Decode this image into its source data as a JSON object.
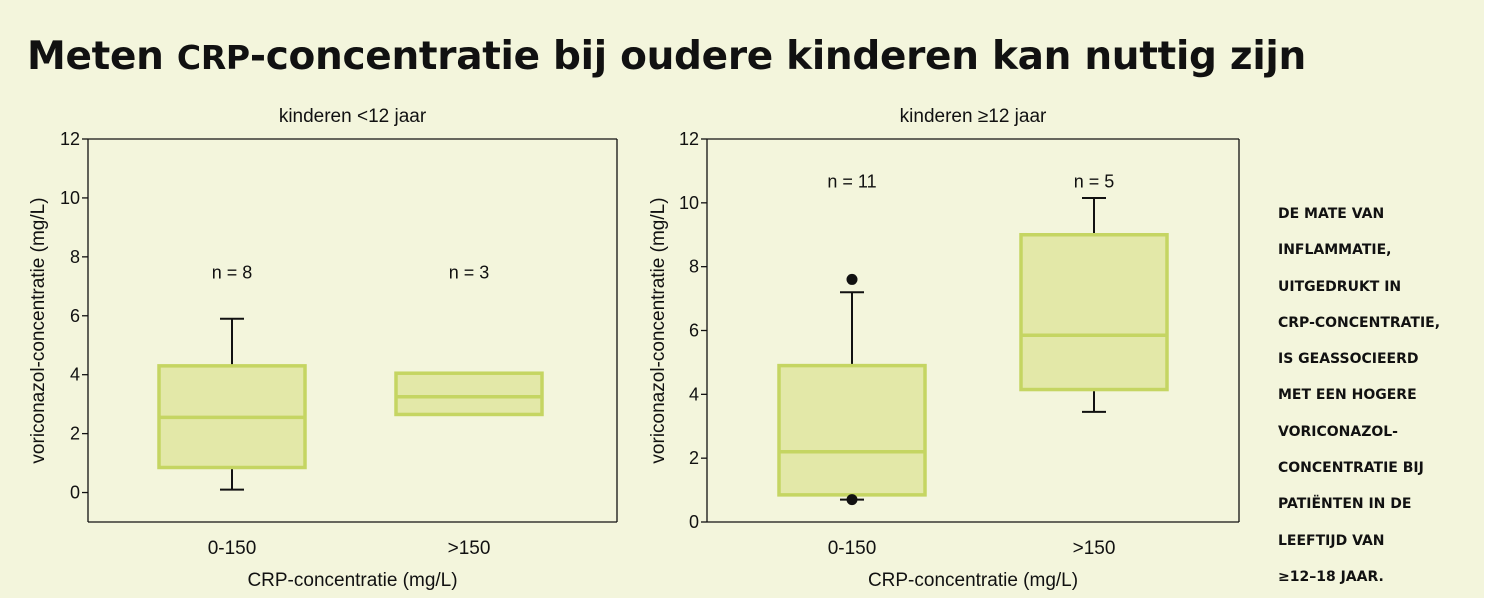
{
  "headline": {
    "pre": "Meten ",
    "abbr": "CRP",
    "post": "-concentratie bij oudere kinderen kan nuttig zijn"
  },
  "side_note": {
    "lines": [
      "De mate van",
      "inflammatie,",
      "uitgedrukt in",
      "CRP-concentratie,",
      "is geassocieerd",
      "met een hogere",
      "voriconazol-",
      "concentratie bij",
      "patiënten in de",
      "leeftijd van",
      "≥12–18 jaar."
    ]
  },
  "colors": {
    "background": "#f3f5dc",
    "box_fill": "#e3e8a8",
    "box_stroke": "#c5d562",
    "axis": "#111111"
  },
  "chart_data": [
    {
      "type": "box",
      "title": "kinderen <12 jaar",
      "xlabel": "CRP-concentratie (mg/L)",
      "ylabel": "voriconazol-concentratie (mg/L)",
      "ylim": [
        -1,
        12
      ],
      "yticks": [
        0,
        2,
        4,
        6,
        8,
        10,
        12
      ],
      "grid": false,
      "annotation_y": 7.5,
      "categories": [
        "0-150",
        ">150"
      ],
      "boxes": [
        {
          "label": "0-150",
          "n_label": "n = 8",
          "whisker_low": 0.1,
          "q1": 0.85,
          "median": 2.55,
          "q3": 4.3,
          "whisker_high": 5.9,
          "outliers": []
        },
        {
          "label": ">150",
          "n_label": "n = 3",
          "whisker_low": null,
          "q1": 2.65,
          "median": 3.25,
          "q3": 4.05,
          "whisker_high": null,
          "outliers": []
        }
      ]
    },
    {
      "type": "box",
      "title": "kinderen ≥12 jaar",
      "xlabel": "CRP-concentratie (mg/L)",
      "ylabel": "voriconazol-concentratie (mg/L)",
      "ylim": [
        0,
        12
      ],
      "yticks": [
        0,
        2,
        4,
        6,
        8,
        10,
        12
      ],
      "grid": false,
      "annotation_y": 10.7,
      "categories": [
        "0-150",
        ">150"
      ],
      "boxes": [
        {
          "label": "0-150",
          "n_label": "n = 11",
          "whisker_low": 0.7,
          "q1": 0.85,
          "median": 2.2,
          "q3": 4.9,
          "whisker_high": 7.2,
          "outliers": [
            0.7,
            7.6
          ]
        },
        {
          "label": ">150",
          "n_label": "n = 5",
          "whisker_low": 3.45,
          "q1": 4.15,
          "median": 5.85,
          "q3": 9.0,
          "whisker_high": 10.15,
          "outliers": []
        }
      ]
    }
  ]
}
